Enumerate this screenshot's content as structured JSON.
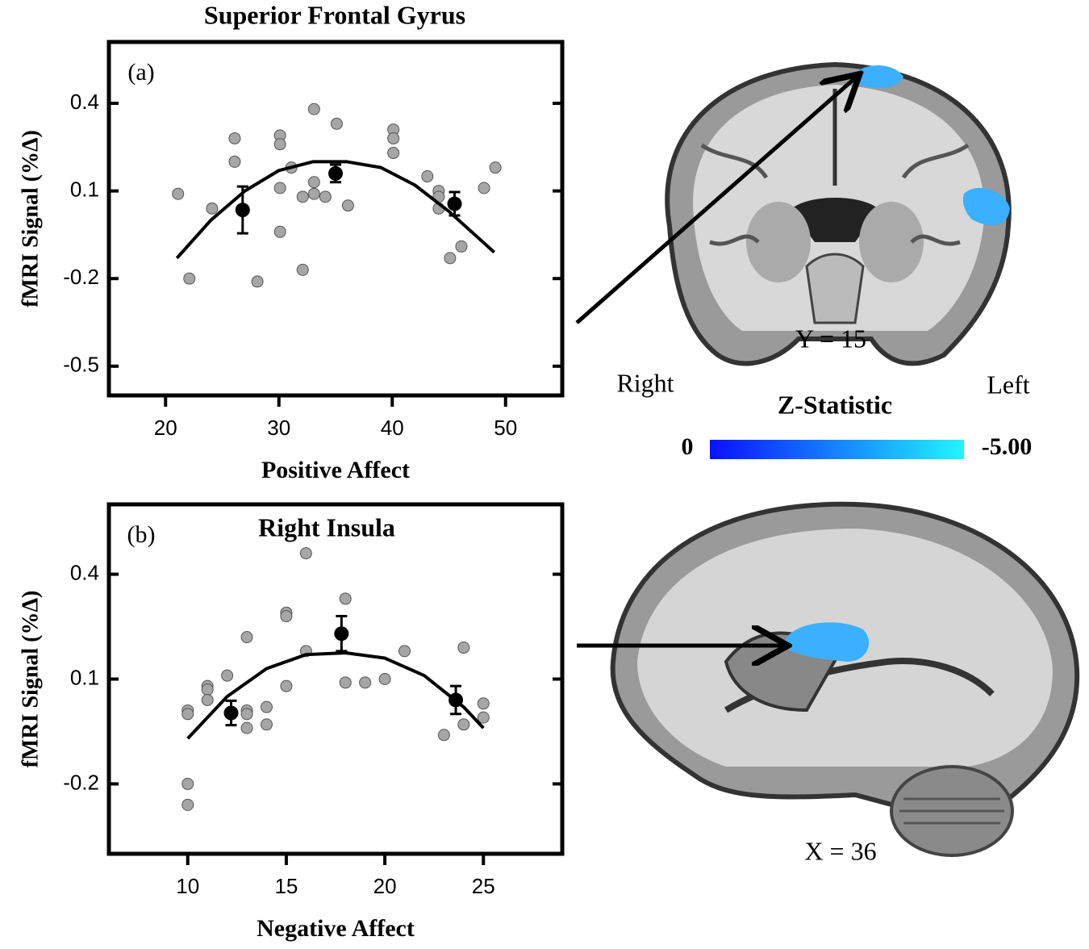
{
  "chart_data": [
    {
      "type": "scatter",
      "title": "Superior Frontal Gyrus",
      "panel_label": "(a)",
      "x_label": "Positive Affect",
      "y_label": "fMRI Signal (%Δ)",
      "xlim": [
        15,
        55
      ],
      "ylim": [
        -0.6,
        0.61
      ],
      "xticks": [
        20,
        30,
        40,
        50
      ],
      "yticks": [
        0.4,
        0.1,
        -0.2,
        -0.5
      ],
      "points": {
        "color": "#a6a6a6",
        "x": [
          21.1,
          24.1,
          26.1,
          26.1,
          22.1,
          28.1,
          30.1,
          30.1,
          30.1,
          30.1,
          31.1,
          32.1,
          32.1,
          33.1,
          33.1,
          33.1,
          34.1,
          35.1,
          36.1,
          40.1,
          40.1,
          40.1,
          43.1,
          44.1,
          44.1,
          44.1,
          45.1,
          46.1,
          48.1,
          49.1
        ],
        "y": [
          0.09,
          0.04,
          0.28,
          0.2,
          -0.2,
          -0.21,
          0.29,
          0.26,
          0.11,
          -0.04,
          0.18,
          0.08,
          -0.17,
          0.38,
          0.13,
          0.09,
          0.08,
          0.33,
          0.05,
          0.31,
          0.28,
          0.23,
          0.15,
          0.1,
          0.08,
          0.04,
          -0.13,
          -0.09,
          0.11,
          0.18
        ]
      },
      "means": {
        "color": "#000000",
        "x": [
          26.8,
          35.0,
          45.5
        ],
        "y": [
          0.035,
          0.16,
          0.056
        ],
        "err": [
          0.08,
          0.03,
          0.04
        ]
      },
      "fit": {
        "color": "#000000",
        "x": [
          21,
          24,
          27,
          30,
          33,
          36,
          39,
          42,
          45,
          49
        ],
        "y": [
          -0.13,
          0.0,
          0.1,
          0.17,
          0.2,
          0.2,
          0.18,
          0.12,
          0.03,
          -0.11
        ]
      }
    },
    {
      "type": "scatter",
      "title": "Right Insula",
      "panel_label": "(b)",
      "x_label": "Negative Affect",
      "y_label": "fMRI Signal (%Δ)",
      "xlim": [
        6,
        29
      ],
      "ylim": [
        -0.4,
        0.6
      ],
      "xticks": [
        10,
        15,
        20,
        25
      ],
      "yticks": [
        0.4,
        0.1,
        -0.2
      ],
      "points": {
        "color": "#a6a6a6",
        "x": [
          10,
          10,
          10,
          10,
          11,
          11,
          11,
          12,
          13,
          13,
          13,
          13,
          14,
          14,
          15,
          15,
          15,
          16,
          16,
          18,
          18,
          19,
          20,
          21,
          23,
          24,
          24,
          25,
          25
        ],
        "y": [
          0.01,
          0.0,
          -0.2,
          -0.26,
          0.08,
          0.07,
          0.04,
          0.11,
          0.22,
          0.01,
          0.0,
          -0.04,
          0.02,
          -0.03,
          0.29,
          0.28,
          0.08,
          0.46,
          0.18,
          0.33,
          0.09,
          0.09,
          0.1,
          0.18,
          -0.06,
          0.19,
          -0.03,
          0.03,
          -0.01
        ]
      },
      "means": {
        "color": "#000000",
        "x": [
          12.2,
          17.8,
          23.6
        ],
        "y": [
          0.003,
          0.23,
          0.04
        ],
        "err": [
          0.035,
          0.05,
          0.04
        ]
      },
      "fit": {
        "color": "#000000",
        "x": [
          10,
          12,
          14,
          16,
          18,
          20,
          22,
          24,
          25
        ],
        "y": [
          -0.07,
          0.05,
          0.13,
          0.17,
          0.175,
          0.16,
          0.11,
          0.02,
          -0.04
        ]
      }
    }
  ],
  "brain_images": {
    "coronal_label": "Y = 15",
    "right_label": "Right",
    "left_label": "Left",
    "sagittal_label": "X = 36"
  },
  "colorbar": {
    "title": "Z-Statistic",
    "ticks": [
      0,
      {
        "value": -5,
        "label": "-5.00"
      }
    ]
  }
}
